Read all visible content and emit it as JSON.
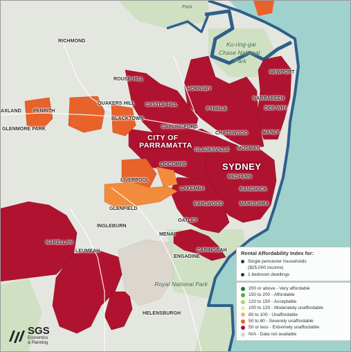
{
  "map": {
    "region": "Sydney",
    "places": [
      {
        "key": "park_top",
        "text": "Park"
      },
      {
        "key": "richmond",
        "text": "RICHMOND"
      },
      {
        "key": "kuringgai",
        "text": "Ku-ring-gai"
      },
      {
        "key": "chase",
        "text": "Chase National"
      },
      {
        "key": "park_ch",
        "text": "Park"
      },
      {
        "key": "newport",
        "text": "NEWPORT"
      },
      {
        "key": "rousehill",
        "text": "ROUSE HILL"
      },
      {
        "key": "hornsby",
        "text": "HORNSBY"
      },
      {
        "key": "narrabeen",
        "text": "NARRABEEN"
      },
      {
        "key": "quakers",
        "text": "QUAKERS HILL"
      },
      {
        "key": "castlehill",
        "text": "CASTLE HILL"
      },
      {
        "key": "deewhy",
        "text": "DEE WHY"
      },
      {
        "key": "penrith",
        "text": "PENRITH"
      },
      {
        "key": "axland",
        "text": "AXLAND"
      },
      {
        "key": "pymble",
        "text": "PYMBLE"
      },
      {
        "key": "blacktown",
        "text": "BLACKTOWN"
      },
      {
        "key": "carlingford",
        "text": "CARLINGFORD"
      },
      {
        "key": "glenmore",
        "text": "GLENMORE PARK"
      },
      {
        "key": "chatswood",
        "text": "CHATSWOOD"
      },
      {
        "key": "manly",
        "text": "MANLY"
      },
      {
        "key": "cityof",
        "text": "CITY OF"
      },
      {
        "key": "parramatta",
        "text": "PARRAMATTA"
      },
      {
        "key": "gladesville",
        "text": "GLADESVILLE"
      },
      {
        "key": "mosman",
        "text": "MOSMAN"
      },
      {
        "key": "lidcombe",
        "text": "LIDCOMBE"
      },
      {
        "key": "sydney",
        "text": "SYDNEY"
      },
      {
        "key": "redfern",
        "text": "REDFERN"
      },
      {
        "key": "liverpool",
        "text": "LIVERPOOL"
      },
      {
        "key": "lakemba",
        "text": "LAKEMBA"
      },
      {
        "key": "randwick",
        "text": "RANDWICK"
      },
      {
        "key": "glenfield",
        "text": "GLENFIELD"
      },
      {
        "key": "earlwood",
        "text": "EARLWOOD"
      },
      {
        "key": "maroubra",
        "text": "MAROUBRA"
      },
      {
        "key": "ingleburn",
        "text": "INGLEBURN"
      },
      {
        "key": "oatley",
        "text": "OATLEY"
      },
      {
        "key": "narellan",
        "text": "NARELLAN"
      },
      {
        "key": "menai",
        "text": "MENAI"
      },
      {
        "key": "caringbah",
        "text": "CARINGBAH"
      },
      {
        "key": "leumeah",
        "text": "LEUMEAH"
      },
      {
        "key": "engadine",
        "text": "ENGADINE"
      },
      {
        "key": "royal",
        "text": "Royal National Park"
      },
      {
        "key": "helensburgh",
        "text": "HELENSBURGH"
      }
    ]
  },
  "legend_info": {
    "title": "Rental Affordability Index for:",
    "lines": [
      "Single pensioner households",
      "($25,000 income)",
      "1 bedroom dwellings"
    ]
  },
  "legend": {
    "items": [
      {
        "label": "200 or above - Very affordable",
        "color": "#1a7a3a"
      },
      {
        "label": "150 to 200 - Affordable",
        "color": "#56a93e"
      },
      {
        "label": "120 to 150 - Acceptable",
        "color": "#a9d36c"
      },
      {
        "label": "100 to 120 - Moderately unaffordable",
        "color": "#f3e7a8"
      },
      {
        "label": "80 to 100 - Unaffordable",
        "color": "#f7b26a"
      },
      {
        "label": "50 to 80 - Severely unaffordable",
        "color": "#e8622a"
      },
      {
        "label": "50 or less - Extremely unaffordable",
        "color": "#b0132f"
      },
      {
        "label": "N/A - Data not available",
        "color": "#d3d3d3"
      }
    ]
  },
  "logo": {
    "name": "SGS",
    "line1": "Economics",
    "line2": "& Planning"
  },
  "colors": {
    "ocean": "#9fd1cd",
    "land": "#e4e6e0",
    "park": "#cfe0c3",
    "extreme": "#b0132f",
    "severe": "#e8622a",
    "unaffordable": "#f28b3b",
    "moderate": "#f7c9a3",
    "coast": "#2f5f8a"
  }
}
